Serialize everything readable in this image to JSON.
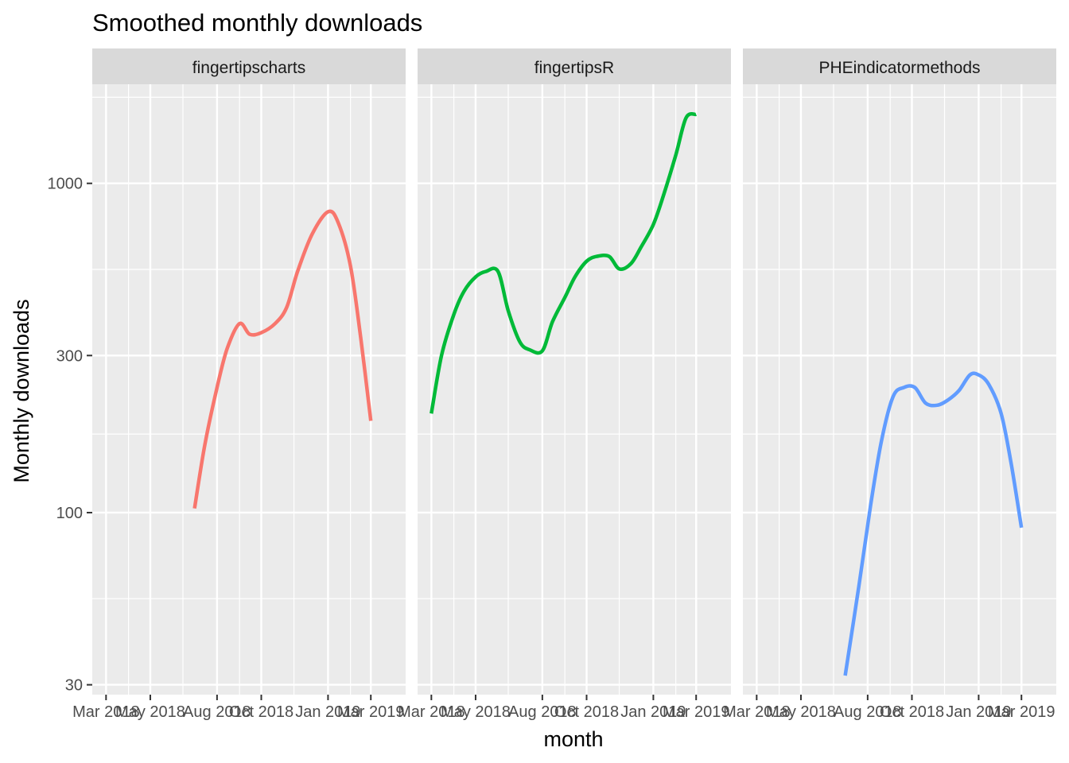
{
  "chart_data": {
    "type": "line",
    "title": "Smoothed monthly downloads",
    "xlabel": "month",
    "ylabel": "Monthly downloads",
    "y_scale": "log10",
    "ylim": [
      28,
      2000
    ],
    "y_ticks": [
      {
        "value": 30,
        "label": "30"
      },
      {
        "value": 100,
        "label": "100"
      },
      {
        "value": 300,
        "label": "300"
      },
      {
        "value": 1000,
        "label": "1000"
      }
    ],
    "xlim": [
      "2018-02-10",
      "2019-04-18"
    ],
    "x_ticks": [
      {
        "date": "2018-03-01",
        "label": "Mar 2018"
      },
      {
        "date": "2018-05-01",
        "label": "May 2018"
      },
      {
        "date": "2018-08-01",
        "label": "Aug 2018"
      },
      {
        "date": "2018-10-01",
        "label": "Oct 2018"
      },
      {
        "date": "2019-01-01",
        "label": "Jan 2019"
      },
      {
        "date": "2019-03-01",
        "label": "Mar 2019"
      }
    ],
    "x_minor": [
      "2018-04-01",
      "2018-06-15",
      "2018-09-01",
      "2018-11-15",
      "2019-02-01"
    ],
    "grid": true,
    "legend": "none",
    "series": [
      {
        "name": "fingertipscharts",
        "color": "#F8766D",
        "points": [
          [
            "2018-07-01",
            103
          ],
          [
            "2018-07-15",
            160
          ],
          [
            "2018-08-01",
            240
          ],
          [
            "2018-08-15",
            315
          ],
          [
            "2018-09-01",
            375
          ],
          [
            "2018-09-15",
            348
          ],
          [
            "2018-10-01",
            352
          ],
          [
            "2018-10-20",
            375
          ],
          [
            "2018-11-05",
            420
          ],
          [
            "2018-11-20",
            540
          ],
          [
            "2018-12-10",
            700
          ],
          [
            "2019-01-01",
            820
          ],
          [
            "2019-01-15",
            760
          ],
          [
            "2019-02-01",
            560
          ],
          [
            "2019-02-15",
            340
          ],
          [
            "2019-03-01",
            190
          ]
        ]
      },
      {
        "name": "fingertipsR",
        "color": "#00BA38",
        "points": [
          [
            "2018-03-01",
            200
          ],
          [
            "2018-03-15",
            300
          ],
          [
            "2018-04-01",
            400
          ],
          [
            "2018-04-15",
            470
          ],
          [
            "2018-05-01",
            520
          ],
          [
            "2018-05-15",
            540
          ],
          [
            "2018-06-01",
            540
          ],
          [
            "2018-06-15",
            410
          ],
          [
            "2018-07-01",
            330
          ],
          [
            "2018-07-15",
            312
          ],
          [
            "2018-08-01",
            310
          ],
          [
            "2018-08-15",
            380
          ],
          [
            "2018-09-01",
            450
          ],
          [
            "2018-09-15",
            520
          ],
          [
            "2018-10-01",
            580
          ],
          [
            "2018-10-15",
            600
          ],
          [
            "2018-11-01",
            600
          ],
          [
            "2018-11-15",
            550
          ],
          [
            "2018-12-01",
            570
          ],
          [
            "2018-12-15",
            640
          ],
          [
            "2019-01-01",
            750
          ],
          [
            "2019-01-15",
            920
          ],
          [
            "2019-02-01",
            1220
          ],
          [
            "2019-02-15",
            1580
          ],
          [
            "2019-03-01",
            1620
          ]
        ]
      },
      {
        "name": "PHEindicatormethods",
        "color": "#619CFF",
        "points": [
          [
            "2018-07-01",
            32
          ],
          [
            "2018-07-20",
            60
          ],
          [
            "2018-08-05",
            105
          ],
          [
            "2018-08-20",
            165
          ],
          [
            "2018-09-05",
            225
          ],
          [
            "2018-09-20",
            240
          ],
          [
            "2018-10-05",
            240
          ],
          [
            "2018-10-20",
            215
          ],
          [
            "2018-11-05",
            212
          ],
          [
            "2018-11-20",
            220
          ],
          [
            "2018-12-05",
            235
          ],
          [
            "2018-12-20",
            262
          ],
          [
            "2019-01-01",
            262
          ],
          [
            "2019-01-15",
            245
          ],
          [
            "2019-02-01",
            200
          ],
          [
            "2019-02-15",
            140
          ],
          [
            "2019-03-01",
            90
          ]
        ]
      }
    ]
  }
}
